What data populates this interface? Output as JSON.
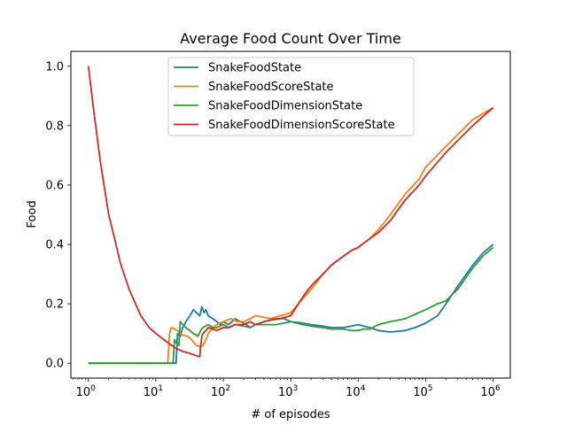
{
  "chart_data": {
    "type": "line",
    "title": "Average Food Count Over Time",
    "xlabel": "# of episodes",
    "ylabel": "Food",
    "xscale": "log",
    "xlim": [
      0.55,
      1800000
    ],
    "ylim": [
      -0.05,
      1.05
    ],
    "x_ticks": [
      {
        "base": "10",
        "exp": "0"
      },
      {
        "base": "10",
        "exp": "1"
      },
      {
        "base": "10",
        "exp": "2"
      },
      {
        "base": "10",
        "exp": "3"
      },
      {
        "base": "10",
        "exp": "4"
      },
      {
        "base": "10",
        "exp": "5"
      },
      {
        "base": "10",
        "exp": "6"
      }
    ],
    "y_ticks": [
      "0.0",
      "0.2",
      "0.4",
      "0.6",
      "0.8",
      "1.0"
    ],
    "grid": false,
    "legend_position": "top-center",
    "series": [
      {
        "name": "SnakeFoodState",
        "color": "#1f77b4",
        "points": [
          [
            1,
            0
          ],
          [
            10,
            0
          ],
          [
            20,
            0
          ],
          [
            21,
            0.1
          ],
          [
            23,
            0.09
          ],
          [
            25,
            0.12
          ],
          [
            28,
            0.14
          ],
          [
            32,
            0.16
          ],
          [
            36,
            0.18
          ],
          [
            40,
            0.17
          ],
          [
            45,
            0.16
          ],
          [
            48,
            0.19
          ],
          [
            52,
            0.17
          ],
          [
            55,
            0.18
          ],
          [
            60,
            0.16
          ],
          [
            70,
            0.15
          ],
          [
            80,
            0.14
          ],
          [
            90,
            0.13
          ],
          [
            100,
            0.14
          ],
          [
            120,
            0.13
          ],
          [
            150,
            0.15
          ],
          [
            180,
            0.14
          ],
          [
            220,
            0.13
          ],
          [
            250,
            0.12
          ],
          [
            300,
            0.13
          ],
          [
            400,
            0.14
          ],
          [
            600,
            0.15
          ],
          [
            800,
            0.15
          ],
          [
            1000,
            0.14
          ],
          [
            1500,
            0.135
          ],
          [
            2000,
            0.13
          ],
          [
            3000,
            0.125
          ],
          [
            4000,
            0.12
          ],
          [
            6000,
            0.12
          ],
          [
            8000,
            0.125
          ],
          [
            10000,
            0.13
          ],
          [
            12000,
            0.125
          ],
          [
            15000,
            0.12
          ],
          [
            20000,
            0.11
          ],
          [
            30000,
            0.105
          ],
          [
            50000,
            0.11
          ],
          [
            70000,
            0.12
          ],
          [
            100000,
            0.135
          ],
          [
            150000,
            0.16
          ],
          [
            200000,
            0.2
          ],
          [
            300000,
            0.26
          ],
          [
            500000,
            0.33
          ],
          [
            700000,
            0.37
          ],
          [
            1000000,
            0.4
          ]
        ]
      },
      {
        "name": "SnakeFoodScoreState",
        "color": "#ff7f0e",
        "points": [
          [
            1,
            0
          ],
          [
            10,
            0
          ],
          [
            15,
            0
          ],
          [
            16,
            0.1
          ],
          [
            17,
            0.12
          ],
          [
            19,
            0.115
          ],
          [
            21,
            0.11
          ],
          [
            23,
            0.1
          ],
          [
            25,
            0.095
          ],
          [
            30,
            0.09
          ],
          [
            32,
            0.085
          ],
          [
            35,
            0.075
          ],
          [
            40,
            0.06
          ],
          [
            45,
            0.055
          ],
          [
            50,
            0.06
          ],
          [
            55,
            0.08
          ],
          [
            60,
            0.1
          ],
          [
            70,
            0.12
          ],
          [
            80,
            0.13
          ],
          [
            100,
            0.14
          ],
          [
            130,
            0.15
          ],
          [
            160,
            0.14
          ],
          [
            200,
            0.14
          ],
          [
            250,
            0.15
          ],
          [
            300,
            0.16
          ],
          [
            400,
            0.155
          ],
          [
            500,
            0.15
          ],
          [
            700,
            0.16
          ],
          [
            1000,
            0.17
          ],
          [
            1300,
            0.2
          ],
          [
            1700,
            0.23
          ],
          [
            2200,
            0.26
          ],
          [
            3000,
            0.3
          ],
          [
            4000,
            0.33
          ],
          [
            6000,
            0.36
          ],
          [
            8000,
            0.38
          ],
          [
            10000,
            0.39
          ],
          [
            15000,
            0.42
          ],
          [
            20000,
            0.45
          ],
          [
            30000,
            0.5
          ],
          [
            50000,
            0.57
          ],
          [
            80000,
            0.62
          ],
          [
            100000,
            0.66
          ],
          [
            200000,
            0.73
          ],
          [
            300000,
            0.77
          ],
          [
            500000,
            0.82
          ],
          [
            700000,
            0.84
          ],
          [
            1000000,
            0.86
          ]
        ]
      },
      {
        "name": "SnakeFoodDimensionState",
        "color": "#2ca02c",
        "points": [
          [
            1,
            0
          ],
          [
            10,
            0
          ],
          [
            18,
            0
          ],
          [
            19,
            0.08
          ],
          [
            20,
            0.07
          ],
          [
            22,
            0.06
          ],
          [
            23,
            0.14
          ],
          [
            25,
            0.13
          ],
          [
            28,
            0.12
          ],
          [
            32,
            0.11
          ],
          [
            36,
            0.1
          ],
          [
            40,
            0.095
          ],
          [
            42,
            0.09
          ],
          [
            44,
            0.1
          ],
          [
            46,
            0.11
          ],
          [
            50,
            0.12
          ],
          [
            60,
            0.13
          ],
          [
            70,
            0.12
          ],
          [
            80,
            0.12
          ],
          [
            100,
            0.13
          ],
          [
            120,
            0.12
          ],
          [
            150,
            0.13
          ],
          [
            200,
            0.125
          ],
          [
            250,
            0.12
          ],
          [
            300,
            0.13
          ],
          [
            400,
            0.13
          ],
          [
            600,
            0.13
          ],
          [
            800,
            0.135
          ],
          [
            1000,
            0.14
          ],
          [
            1500,
            0.13
          ],
          [
            2000,
            0.125
          ],
          [
            3000,
            0.12
          ],
          [
            4000,
            0.115
          ],
          [
            6000,
            0.115
          ],
          [
            8000,
            0.11
          ],
          [
            10000,
            0.11
          ],
          [
            12000,
            0.115
          ],
          [
            15000,
            0.115
          ],
          [
            20000,
            0.13
          ],
          [
            30000,
            0.14
          ],
          [
            50000,
            0.15
          ],
          [
            70000,
            0.165
          ],
          [
            100000,
            0.18
          ],
          [
            150000,
            0.2
          ],
          [
            200000,
            0.21
          ],
          [
            300000,
            0.25
          ],
          [
            500000,
            0.32
          ],
          [
            700000,
            0.36
          ],
          [
            1000000,
            0.39
          ]
        ]
      },
      {
        "name": "SnakeFoodDimensionScoreState",
        "color": "#d62728",
        "points": [
          [
            1,
            1.0
          ],
          [
            1.2,
            0.85
          ],
          [
            1.5,
            0.68
          ],
          [
            2,
            0.5
          ],
          [
            2.5,
            0.41
          ],
          [
            3,
            0.335
          ],
          [
            4,
            0.25
          ],
          [
            5,
            0.2
          ],
          [
            6,
            0.16
          ],
          [
            8,
            0.12
          ],
          [
            10,
            0.1
          ],
          [
            13,
            0.08
          ],
          [
            16,
            0.065
          ],
          [
            20,
            0.05
          ],
          [
            25,
            0.04
          ],
          [
            30,
            0.035
          ],
          [
            35,
            0.03
          ],
          [
            40,
            0.025
          ],
          [
            45,
            0.022
          ],
          [
            46,
            0.06
          ],
          [
            47,
            0.07
          ],
          [
            48,
            0.09
          ],
          [
            50,
            0.1
          ],
          [
            55,
            0.11
          ],
          [
            60,
            0.12
          ],
          [
            70,
            0.115
          ],
          [
            80,
            0.11
          ],
          [
            100,
            0.12
          ],
          [
            120,
            0.12
          ],
          [
            150,
            0.13
          ],
          [
            200,
            0.13
          ],
          [
            250,
            0.14
          ],
          [
            300,
            0.13
          ],
          [
            400,
            0.14
          ],
          [
            500,
            0.145
          ],
          [
            700,
            0.15
          ],
          [
            1000,
            0.16
          ],
          [
            1300,
            0.2
          ],
          [
            1700,
            0.24
          ],
          [
            2200,
            0.27
          ],
          [
            3000,
            0.3
          ],
          [
            4000,
            0.33
          ],
          [
            6000,
            0.36
          ],
          [
            8000,
            0.38
          ],
          [
            10000,
            0.39
          ],
          [
            15000,
            0.42
          ],
          [
            20000,
            0.44
          ],
          [
            30000,
            0.48
          ],
          [
            50000,
            0.55
          ],
          [
            80000,
            0.6
          ],
          [
            100000,
            0.63
          ],
          [
            200000,
            0.71
          ],
          [
            300000,
            0.75
          ],
          [
            500000,
            0.8
          ],
          [
            700000,
            0.83
          ],
          [
            1000000,
            0.86
          ]
        ]
      }
    ]
  }
}
